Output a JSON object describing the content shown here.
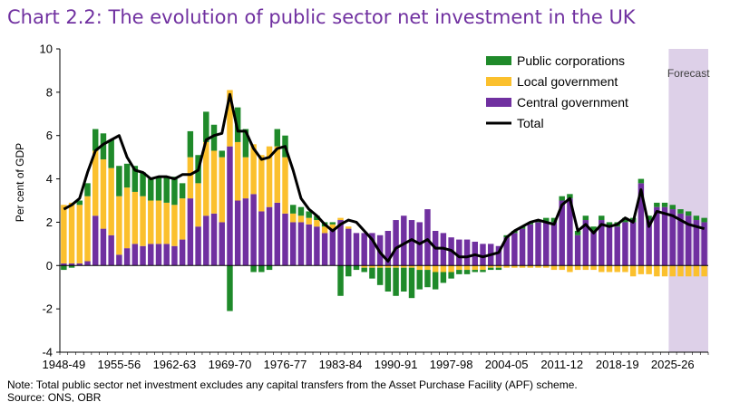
{
  "chart_data": {
    "type": "bar",
    "stacked": true,
    "title": "Chart 2.2: The evolution of public sector net investment in the UK",
    "ylabel": "Per cent of GDP",
    "xlabel": "",
    "ylim": [
      -4,
      10
    ],
    "yticks": [
      -4,
      -2,
      0,
      2,
      4,
      6,
      8,
      10
    ],
    "grid": false,
    "legend_position": "top-right",
    "forecast_label": "Forecast",
    "forecast_start_index": 77,
    "x_tick_labels": [
      "1948-49",
      "1955-56",
      "1962-63",
      "1969-70",
      "1976-77",
      "1983-84",
      "1990-91",
      "1997-98",
      "2004-05",
      "2011-12",
      "2018-19",
      "2025-26"
    ],
    "x_tick_indices": [
      0,
      7,
      14,
      21,
      28,
      35,
      42,
      49,
      56,
      63,
      70,
      77
    ],
    "colors": {
      "public_corporations": "#1f8a2a",
      "local_government": "#fbc02d",
      "central_government": "#7030a0",
      "total": "#000000",
      "forecast_shade": "#ddd0e8",
      "title": "#7030a0"
    },
    "categories": [
      "1948-49",
      "1949-50",
      "1950-51",
      "1951-52",
      "1952-53",
      "1953-54",
      "1954-55",
      "1955-56",
      "1956-57",
      "1957-58",
      "1958-59",
      "1959-60",
      "1960-61",
      "1961-62",
      "1962-63",
      "1963-64",
      "1964-65",
      "1965-66",
      "1966-67",
      "1967-68",
      "1968-69",
      "1969-70",
      "1970-71",
      "1971-72",
      "1972-73",
      "1973-74",
      "1974-75",
      "1975-76",
      "1976-77",
      "1977-78",
      "1978-79",
      "1979-80",
      "1980-81",
      "1981-82",
      "1982-83",
      "1983-84",
      "1984-85",
      "1985-86",
      "1986-87",
      "1987-88",
      "1988-89",
      "1989-90",
      "1990-91",
      "1991-92",
      "1992-93",
      "1993-94",
      "1994-95",
      "1995-96",
      "1996-97",
      "1997-98",
      "1998-99",
      "1999-00",
      "2000-01",
      "2001-02",
      "2002-03",
      "2003-04",
      "2004-05",
      "2005-06",
      "2006-07",
      "2007-08",
      "2008-09",
      "2009-10",
      "2010-11",
      "2011-12",
      "2012-13",
      "2013-14",
      "2014-15",
      "2015-16",
      "2016-17",
      "2017-18",
      "2018-19",
      "2019-20",
      "2020-21",
      "2021-22",
      "2022-23",
      "2023-24",
      "2024-25",
      "2025-26",
      "2026-27",
      "2027-28",
      "2028-29",
      "2029-30"
    ],
    "series": [
      {
        "name": "Public corporations",
        "values": [
          -0.2,
          -0.1,
          0.2,
          0.6,
          1.0,
          1.2,
          1.3,
          1.4,
          1.1,
          1.2,
          1.1,
          1.0,
          1.1,
          1.2,
          1.3,
          0.7,
          1.2,
          1.3,
          1.4,
          1.2,
          0.3,
          -2.1,
          1.6,
          1.3,
          -0.3,
          -0.3,
          -0.2,
          0.8,
          1.0,
          0.4,
          0.4,
          0.3,
          0.2,
          0.2,
          0.1,
          -1.4,
          -0.5,
          -0.2,
          -0.2,
          -0.5,
          -0.8,
          -1.1,
          -1.3,
          -1.1,
          -1.4,
          -0.9,
          -0.8,
          -0.8,
          -0.5,
          -0.3,
          -0.2,
          -0.2,
          -0.1,
          -0.1,
          -0.1,
          -0.1,
          0.1,
          0.1,
          0.1,
          0.1,
          0.1,
          0.2,
          0.2,
          0.2,
          0.2,
          0.2,
          0.2,
          0.2,
          0.2,
          0.2,
          0.2,
          0.2,
          0.2,
          0.2,
          0.2,
          0.2,
          0.2,
          0.2,
          0.2,
          0.2,
          0.2,
          0.2
        ]
      },
      {
        "name": "Local government",
        "values": [
          2.7,
          2.8,
          2.7,
          3.0,
          3.0,
          3.2,
          3.1,
          2.7,
          2.8,
          2.4,
          2.3,
          2.0,
          2.0,
          1.9,
          1.9,
          1.9,
          1.9,
          2.0,
          3.4,
          2.9,
          3.0,
          2.6,
          2.7,
          1.9,
          2.3,
          2.6,
          2.8,
          2.6,
          2.6,
          0.4,
          0.3,
          0.3,
          0.3,
          0.3,
          0.2,
          0.1,
          0.1,
          0.0,
          -0.1,
          -0.1,
          -0.1,
          -0.1,
          -0.1,
          -0.1,
          -0.1,
          -0.2,
          -0.2,
          -0.3,
          -0.3,
          -0.3,
          -0.2,
          -0.2,
          -0.2,
          -0.2,
          -0.1,
          -0.1,
          -0.1,
          -0.1,
          -0.1,
          -0.1,
          -0.1,
          -0.1,
          -0.2,
          -0.2,
          -0.3,
          -0.2,
          -0.2,
          -0.2,
          -0.3,
          -0.3,
          -0.3,
          -0.3,
          -0.5,
          -0.4,
          -0.4,
          -0.5,
          -0.5,
          -0.5,
          -0.5,
          -0.5,
          -0.5,
          -0.5
        ]
      },
      {
        "name": "Central government",
        "values": [
          0.1,
          0.1,
          0.1,
          0.2,
          2.3,
          1.7,
          1.4,
          0.5,
          0.8,
          1.0,
          0.9,
          1.0,
          1.0,
          1.0,
          0.9,
          1.2,
          3.1,
          1.8,
          2.3,
          2.4,
          2.0,
          5.5,
          3.0,
          3.1,
          3.3,
          2.5,
          2.7,
          2.9,
          2.4,
          2.0,
          2.0,
          1.9,
          1.8,
          1.5,
          1.7,
          2.1,
          1.7,
          1.5,
          1.5,
          1.5,
          1.4,
          1.6,
          2.1,
          2.3,
          2.1,
          2.0,
          2.6,
          1.6,
          1.5,
          1.3,
          1.2,
          1.2,
          1.1,
          1.0,
          1.0,
          0.9,
          1.3,
          1.5,
          1.7,
          1.9,
          2.0,
          2.0,
          2.0,
          3.0,
          3.1,
          1.4,
          2.1,
          1.6,
          2.1,
          1.8,
          1.8,
          2.0,
          2.0,
          3.8,
          2.1,
          2.7,
          2.7,
          2.6,
          2.4,
          2.3,
          2.1,
          2.0
        ]
      },
      {
        "name": "Total",
        "values": [
          2.6,
          2.8,
          3.1,
          4.3,
          5.3,
          5.6,
          5.8,
          6.0,
          5.0,
          4.4,
          4.3,
          4.0,
          4.1,
          4.1,
          4.0,
          4.2,
          4.2,
          4.4,
          5.8,
          6.0,
          6.1,
          7.9,
          6.2,
          6.2,
          5.4,
          4.9,
          5.0,
          5.4,
          5.5,
          4.4,
          3.1,
          2.6,
          2.3,
          1.9,
          1.6,
          1.9,
          2.1,
          2.0,
          1.6,
          1.2,
          0.6,
          0.2,
          0.8,
          1.0,
          1.2,
          1.0,
          1.2,
          0.8,
          0.8,
          0.7,
          0.4,
          0.4,
          0.5,
          0.4,
          0.5,
          0.6,
          1.3,
          1.6,
          1.8,
          2.0,
          2.1,
          2.0,
          1.9,
          2.8,
          3.1,
          1.6,
          1.9,
          1.5,
          1.9,
          1.8,
          1.9,
          2.2,
          2.0,
          3.5,
          1.8,
          2.5,
          2.4,
          2.3,
          2.1,
          1.9,
          1.8,
          1.7
        ]
      }
    ]
  },
  "footer": {
    "note": "Note: Total public sector net investment excludes any capital transfers from the Asset Purchase Facility (APF) scheme.",
    "source": "Source: ONS, OBR"
  }
}
